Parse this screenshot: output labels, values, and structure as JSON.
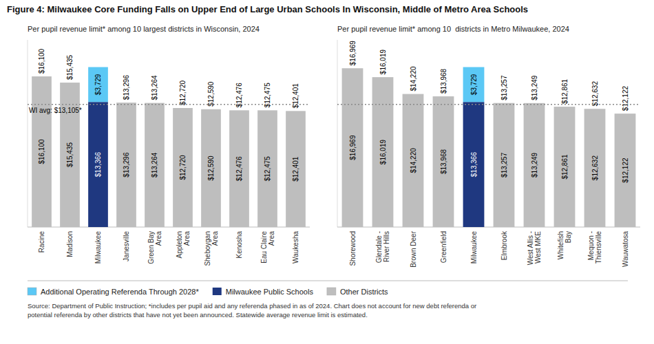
{
  "chart_data": [
    {
      "type": "bar",
      "stacked": true,
      "title": "Figure 4: Milwaukee Core Funding Falls on Upper End of Large Urban Schools In Wisconsin, Middle of Metro Area Schools",
      "subtitle": "Per pupil revenue limit* among 10 largest districts in Wisconsin, 2024",
      "categories": [
        "Racine",
        "Madison",
        "Milwaukee",
        "Janesville",
        "Green Bay\nArea",
        "Appleton\nArea",
        "Sheboygan\nArea",
        "Kenosha",
        "Eau Claire\nArea",
        "Waukesha"
      ],
      "series": [
        {
          "name": "Additional Operating Referenda Through 2028*",
          "color": "#5BC8F5",
          "values": [
            null,
            null,
            3729,
            null,
            null,
            null,
            null,
            null,
            null,
            null
          ],
          "value_labels": [
            null,
            null,
            "$3,729",
            null,
            null,
            null,
            null,
            null,
            null,
            null
          ]
        },
        {
          "name": "Milwaukee Public Schools",
          "color": "#1F3880",
          "values": [
            null,
            null,
            13366,
            null,
            null,
            null,
            null,
            null,
            null,
            null
          ],
          "value_labels": [
            null,
            null,
            "$13,366",
            null,
            null,
            null,
            null,
            null,
            null,
            null
          ]
        },
        {
          "name": "Other Districts",
          "color": "#BEBEBE",
          "values": [
            16100,
            15435,
            null,
            13296,
            13264,
            12720,
            12590,
            12476,
            12475,
            12401
          ],
          "value_labels": [
            "$16,100",
            "$15,435",
            null,
            "$13,296",
            "$13,264",
            "$12,720",
            "$12,590",
            "$12,476",
            "$12,475",
            "$12,401"
          ]
        }
      ],
      "ylim": [
        0,
        20000
      ],
      "tick_labels": "x",
      "grid": false,
      "data_labels": true,
      "legend": "bottom",
      "reference_line": {
        "value": 13105,
        "label": "WI avg: $13,105*"
      },
      "annotations": [
        "Source: Department of Public Instruction; *includes per pupil aid and any referenda phased in as of 2024. Chart does not account for new debt referenda or\npotential referenda by other districts that have not yet been announced. Statewide average revenue limit is estimated."
      ]
    },
    {
      "type": "bar",
      "stacked": true,
      "subtitle": "Per pupil revenue limit* among 10  districts in Metro Milwaukee, 2024",
      "categories": [
        "Shorewood",
        "Glendale -\nRiver Hills",
        "Brown Deer",
        "Greenfield",
        "Milwaukee",
        "Elmbrook",
        "West Allis -\nWest MKE",
        "Whitefish\nBay",
        "Mequon -\nThiensville",
        "Wauwatosa"
      ],
      "series": [
        {
          "name": "Additional Operating Referenda Through 2028*",
          "color": "#5BC8F5",
          "values": [
            null,
            null,
            null,
            null,
            3729,
            null,
            null,
            null,
            null,
            null
          ],
          "value_labels": [
            null,
            null,
            null,
            null,
            "$3,729",
            null,
            null,
            null,
            null,
            null
          ]
        },
        {
          "name": "Milwaukee Public Schools",
          "color": "#1F3880",
          "values": [
            null,
            null,
            null,
            null,
            13366,
            null,
            null,
            null,
            null,
            null
          ],
          "value_labels": [
            null,
            null,
            null,
            null,
            "$13,366",
            null,
            null,
            null,
            null,
            null
          ]
        },
        {
          "name": "Other Districts",
          "color": "#BEBEBE",
          "values": [
            16969,
            16019,
            14220,
            13968,
            null,
            13257,
            13249,
            12861,
            12632,
            12122
          ],
          "value_labels": [
            "$16,969",
            "$16,019",
            "$14,220",
            "$13,968",
            null,
            "$13,257",
            "$13,249",
            "$12,861",
            "$12,632",
            "$12,122"
          ]
        }
      ],
      "ylim": [
        0,
        20000
      ],
      "tick_labels": "x",
      "grid": false,
      "data_labels": true,
      "reference_line": {
        "value": 13105
      }
    }
  ]
}
